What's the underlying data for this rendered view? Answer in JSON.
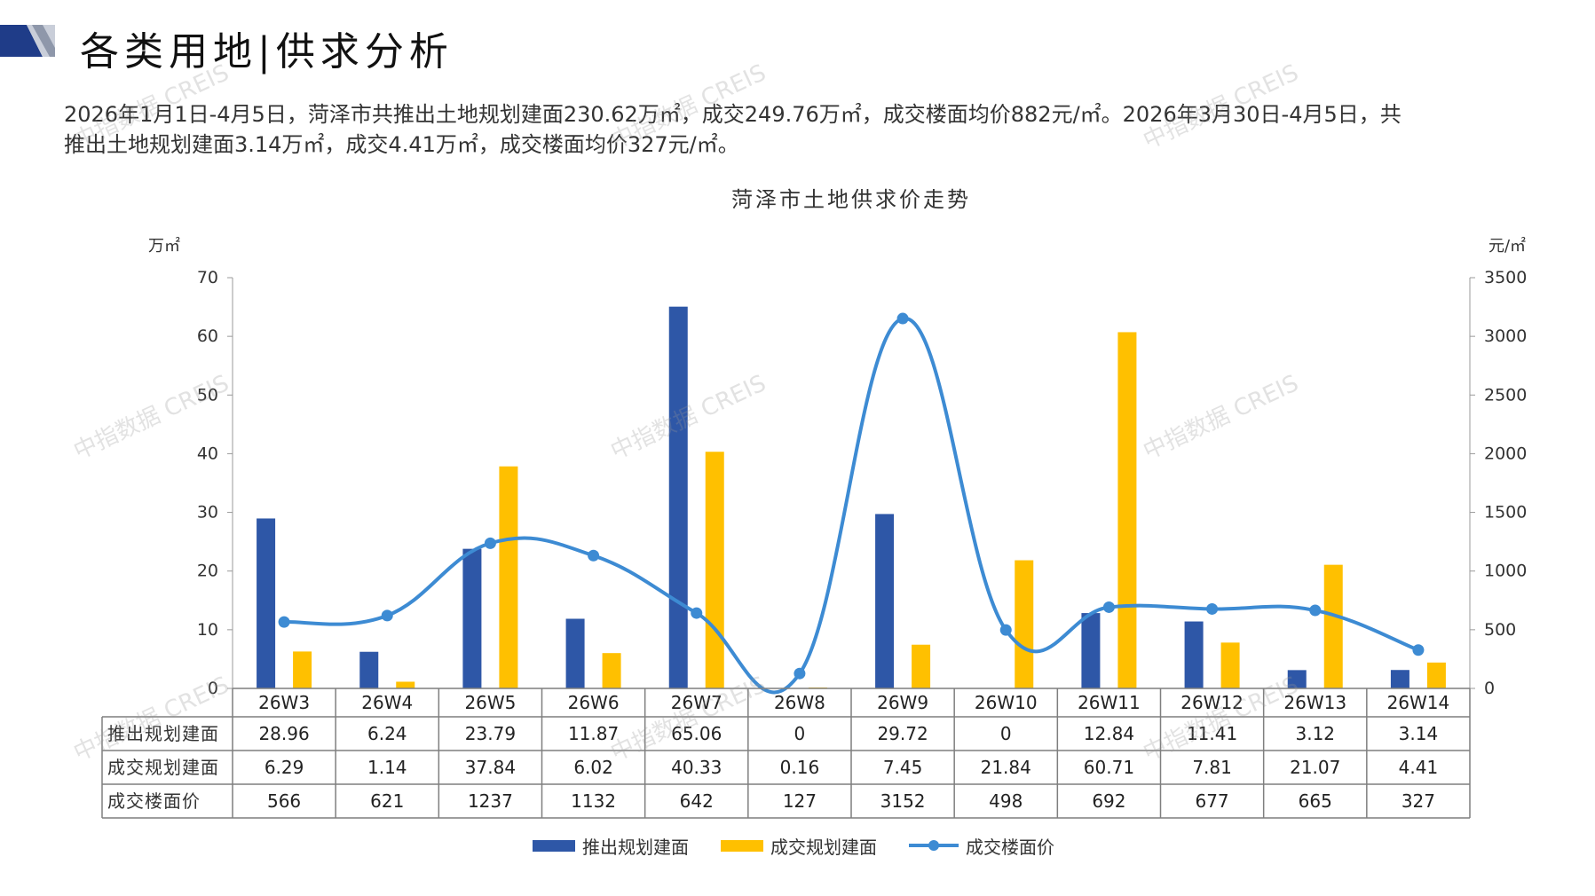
{
  "page": {
    "title": "各类用地|供求分析",
    "summary_line1": "2026年1月1日-4月5日，菏泽市共推出土地规划建面230.62万㎡，成交249.76万㎡，成交楼面均价882元/㎡。2026年3月30日-4月5日，共",
    "summary_line2": "推出土地规划建面3.14万㎡，成交4.41万㎡，成交楼面均价327元/㎡。",
    "watermark": "中指数据 CREIS"
  },
  "colors": {
    "supply": "#2E57A7",
    "deal": "#FFC000",
    "price": "#3D8BD3",
    "header_dark": "#1F3C88",
    "header_grey": "#9AA3B5"
  },
  "chart_data": {
    "type": "bar",
    "title": "菏泽市土地供求价走势",
    "y_left_unit": "万㎡",
    "y_right_unit": "元/㎡",
    "ylim_left": [
      0,
      70
    ],
    "ylim_right": [
      0,
      3500
    ],
    "yticks_left": [
      0,
      10,
      20,
      30,
      40,
      50,
      60,
      70
    ],
    "yticks_right": [
      0,
      500,
      1000,
      1500,
      2000,
      2500,
      3000,
      3500
    ],
    "categories": [
      "26W3",
      "26W4",
      "26W5",
      "26W6",
      "26W7",
      "26W8",
      "26W9",
      "26W10",
      "26W11",
      "26W12",
      "26W13",
      "26W14"
    ],
    "series": [
      {
        "name": "推出规划建面",
        "type": "bar",
        "axis": "left",
        "values": [
          28.96,
          6.24,
          23.79,
          11.87,
          65.06,
          0,
          29.72,
          0,
          12.84,
          11.41,
          3.12,
          3.14
        ],
        "labels": [
          "28.96",
          "6.24",
          "23.79",
          "11.87",
          "65.06",
          "0",
          "29.72",
          "0",
          "12.84",
          "11.41",
          "3.12",
          "3.14"
        ]
      },
      {
        "name": "成交规划建面",
        "type": "bar",
        "axis": "left",
        "values": [
          6.29,
          1.14,
          37.84,
          6.02,
          40.33,
          0.16,
          7.45,
          21.84,
          60.71,
          7.81,
          21.07,
          4.41
        ],
        "labels": [
          "6.29",
          "1.14",
          "37.84",
          "6.02",
          "40.33",
          "0.16",
          "7.45",
          "21.84",
          "60.71",
          "7.81",
          "21.07",
          "4.41"
        ]
      },
      {
        "name": "成交楼面价",
        "type": "line",
        "axis": "right",
        "values": [
          566,
          621,
          1237,
          1132,
          642,
          127,
          3152,
          498,
          692,
          677,
          665,
          327
        ],
        "labels": [
          "566",
          "621",
          "1237",
          "1132",
          "642",
          "127",
          "3152",
          "498",
          "692",
          "677",
          "665",
          "327"
        ]
      }
    ],
    "legend": "bottom",
    "grid": false
  }
}
